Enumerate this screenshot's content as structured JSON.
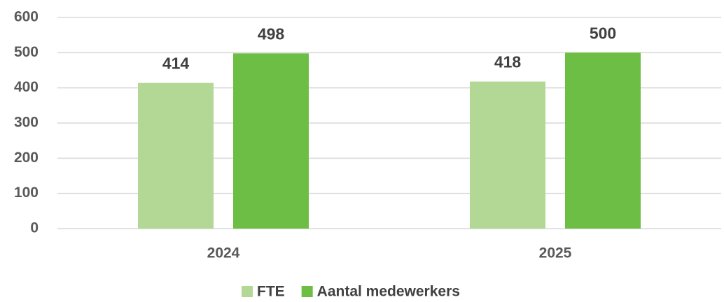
{
  "chart_data": {
    "type": "bar",
    "categories": [
      "2024",
      "2025"
    ],
    "series": [
      {
        "name": "FTE",
        "color": "#b3d795",
        "values": [
          414,
          418
        ]
      },
      {
        "name": "Aantal medewerkers",
        "color": "#6dbe45",
        "values": [
          498,
          500
        ]
      }
    ],
    "ylim": [
      0,
      600
    ],
    "yticks": [
      0,
      100,
      200,
      300,
      400,
      500,
      600
    ],
    "grid": true,
    "legend": "bottom"
  }
}
